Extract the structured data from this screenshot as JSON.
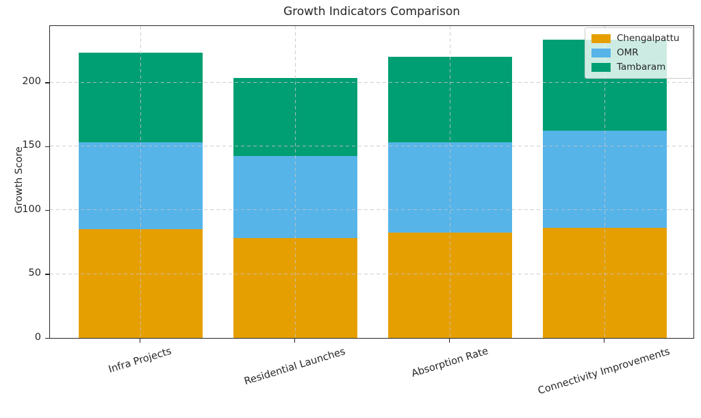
{
  "chart_data": {
    "type": "bar",
    "stacked": true,
    "title": "Growth Indicators Comparison",
    "xlabel": "",
    "ylabel": "Growth Score",
    "categories": [
      "Infra Projects",
      "Residential Launches",
      "Absorption Rate",
      "Connectivity Improvements"
    ],
    "series": [
      {
        "name": "Chengalpattu",
        "color": "#E69F00",
        "values": [
          85,
          78,
          82,
          86
        ]
      },
      {
        "name": "OMR",
        "color": "#56B4E9",
        "values": [
          68,
          64,
          71,
          76
        ]
      },
      {
        "name": "Tambaram",
        "color": "#009E73",
        "values": [
          70,
          61,
          67,
          71
        ]
      }
    ],
    "stack_totals": [
      223,
      203,
      220,
      233
    ],
    "y_ticks": [
      0,
      50,
      100,
      150,
      200
    ],
    "ylim": [
      0,
      245
    ],
    "grid": "dashed, both axes, drawn over bars",
    "legend_position": "upper right",
    "text_color": "#262626",
    "background_color": "#ffffff",
    "xtick_rotation_deg": 17
  }
}
